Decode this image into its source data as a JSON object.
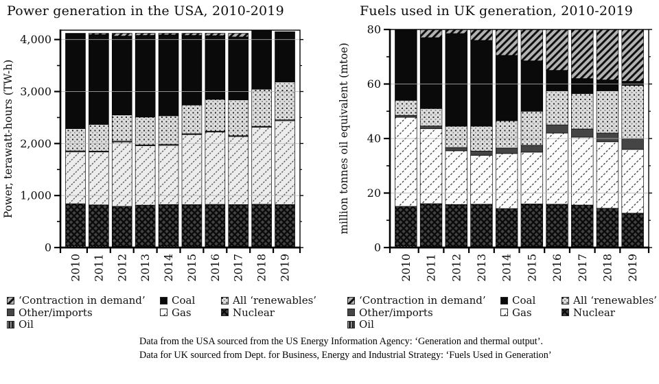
{
  "page": {
    "background": "#ffffff"
  },
  "caption": {
    "line1": "Data from the USA sourced from the US Energy Information Agency: ‘Generation and thermal output’.",
    "line2": "Data for UK sourced from Dept. for Business, Energy and Industrial Strategy: ‘Fuels Used in Generation’"
  },
  "legend": {
    "columns": [
      [
        {
          "key": "contraction",
          "label": "‘Contraction in demand’"
        },
        {
          "key": "other",
          "label": "Other/imports"
        },
        {
          "key": "oil",
          "label": "Oil"
        }
      ],
      [
        {
          "key": "coal",
          "label": "Coal"
        },
        {
          "key": "gas_uk",
          "label": "Gas"
        }
      ],
      [
        {
          "key": "renewables",
          "label": "All ‘renewables’"
        },
        {
          "key": "nuclear",
          "label": "Nuclear"
        }
      ]
    ]
  },
  "patterns": {
    "contraction": {
      "type": "diag-stripe",
      "bg": "#b3b3b3",
      "fg": "#0f0f0f",
      "angle": 45,
      "period": 7.2,
      "width": 3.0
    },
    "other": {
      "type": "solid",
      "bg": "#454545"
    },
    "oil": {
      "type": "vert-stripe",
      "bg": "#1f1f1f",
      "fg": "#a8a8a8",
      "period": 4.5,
      "width": 1.6
    },
    "coal": {
      "type": "solid",
      "bg": "#0a0a0a"
    },
    "gas_usa": {
      "type": "diag-stripe",
      "bg": "#ececec",
      "fg": "#4a4a4a",
      "angle": 45,
      "period": 8.5,
      "width": 1.3,
      "dash": "2.4 1.85"
    },
    "gas_uk": {
      "type": "diag-stripe",
      "bg": "#fdfdfd",
      "fg": "#2b2b2b",
      "angle": 45,
      "period": 10.5,
      "width": 1.2,
      "dash": "3 2.25"
    },
    "renewables": {
      "type": "dots",
      "bg": "#dcdcdc",
      "fg": "#161616",
      "fg2": "#909090",
      "period": 6.5,
      "size": 1.9
    },
    "nuclear": {
      "type": "cross-hatch",
      "bg": "#434343",
      "fg": "#0b0b0b",
      "period": 9,
      "width": 2.4
    }
  },
  "chart_data": [
    {
      "type": "bar",
      "stacked": true,
      "title": "Power generation in the USA, 2010-2019",
      "ylabel": "Power, terawatt-hours (TW-h)",
      "xlabel": "",
      "categories": [
        "2010",
        "2011",
        "2012",
        "2013",
        "2014",
        "2015",
        "2016",
        "2017",
        "2018",
        "2019"
      ],
      "ylim": [
        0,
        4180
      ],
      "yticks": [
        0,
        1000,
        2000,
        3000,
        4000
      ],
      "ytick_labels": [
        "0",
        "1,000",
        "2,000",
        "3,000",
        "4,000"
      ],
      "yminor": [
        500,
        1500,
        2500,
        3500
      ],
      "grid": "horizontal-major",
      "legend_position": "below",
      "series": [
        {
          "name": "Oil",
          "key": "oil",
          "values": [
            35,
            30,
            23,
            27,
            30,
            28,
            24,
            21,
            25,
            18
          ]
        },
        {
          "name": "Nuclear",
          "key": "nuclear",
          "values": [
            807,
            790,
            769,
            789,
            797,
            797,
            806,
            805,
            807,
            809
          ]
        },
        {
          "name": "Gas",
          "key": "gas_usa",
          "values": [
            999,
            1017,
            1237,
            1141,
            1138,
            1347,
            1391,
            1308,
            1482,
            1611
          ]
        },
        {
          "name": "Other/imports",
          "key": "other",
          "values": [
            18,
            18,
            18,
            18,
            18,
            18,
            18,
            18,
            18,
            18
          ]
        },
        {
          "name": "All ‘renewables’",
          "key": "renewables",
          "values": [
            428,
            513,
            502,
            534,
            551,
            550,
            611,
            687,
            713,
            728
          ]
        },
        {
          "name": "Coal",
          "key": "coal",
          "values": [
            1833,
            1726,
            1518,
            1571,
            1556,
            1340,
            1225,
            1211,
            1133,
            966
          ]
        },
        {
          "name": "‘Contraction in demand’",
          "key": "contraction",
          "values": [
            0,
            26,
            53,
            40,
            30,
            40,
            45,
            70,
            0,
            0
          ]
        }
      ]
    },
    {
      "type": "bar",
      "stacked": true,
      "title": "Fuels used in UK generation, 2010-2019",
      "ylabel": "million tonnes oil equivalent (mtoe)",
      "xlabel": "",
      "categories": [
        "2010",
        "2011",
        "2012",
        "2013",
        "2014",
        "2015",
        "2016",
        "2017",
        "2018",
        "2019"
      ],
      "ylim": [
        0,
        80
      ],
      "yticks": [
        0,
        20,
        40,
        60,
        80
      ],
      "ytick_labels": [
        "0",
        "20",
        "40",
        "60",
        "80"
      ],
      "yminor": [
        10,
        30,
        50,
        70
      ],
      "grid": "horizontal-major",
      "legend_position": "below",
      "series": [
        {
          "name": "Oil",
          "key": "oil",
          "values": [
            0.6,
            0.5,
            0.5,
            0.5,
            0.4,
            0.4,
            0.4,
            0.4,
            0.3,
            0.3
          ]
        },
        {
          "name": "Nuclear",
          "key": "nuclear",
          "values": [
            14.5,
            15.6,
            15.3,
            15.4,
            13.9,
            15.6,
            15.5,
            15.2,
            14.1,
            12.3
          ]
        },
        {
          "name": "Gas",
          "key": "gas_uk",
          "values": [
            32.7,
            27.5,
            19.7,
            17.9,
            20.2,
            19.0,
            26.1,
            24.9,
            24.4,
            23.4
          ]
        },
        {
          "name": "Other/imports",
          "key": "other",
          "values": [
            0.7,
            1.0,
            1.2,
            1.6,
            2.0,
            2.5,
            3.0,
            3.0,
            3.2,
            3.9
          ]
        },
        {
          "name": "All ‘renewables’",
          "key": "renewables",
          "values": [
            5.5,
            6.4,
            7.8,
            9.1,
            10.0,
            12.5,
            12.5,
            13.0,
            15.5,
            19.6
          ]
        },
        {
          "name": "Coal",
          "key": "coal",
          "values": [
            26.0,
            26.0,
            34.0,
            31.5,
            24.0,
            18.5,
            7.5,
            5.5,
            4.0,
            1.5
          ]
        },
        {
          "name": "‘Contraction in demand’",
          "key": "contraction",
          "values": [
            0,
            3.0,
            1.5,
            4.0,
            9.5,
            11.5,
            15.0,
            18.0,
            18.5,
            19.0
          ]
        }
      ]
    }
  ]
}
